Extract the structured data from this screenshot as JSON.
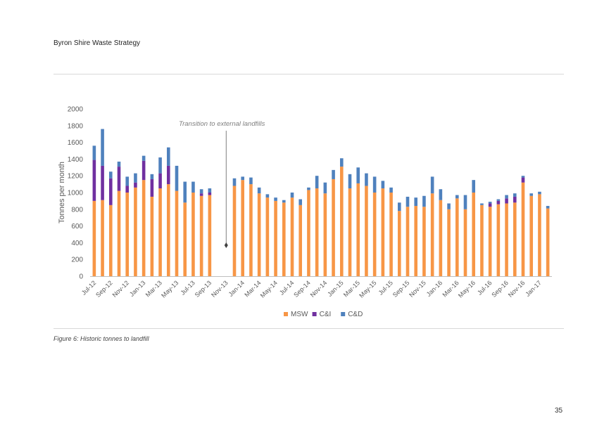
{
  "document": {
    "header": "Byron Shire Waste Strategy",
    "caption": "Figure 6: Historic tonnes to landfill",
    "page_number": "35"
  },
  "chart_data": {
    "type": "bar",
    "stacked": true,
    "title": "",
    "xlabel": "",
    "ylabel": "Tonnes per month",
    "ylim": [
      0,
      2000
    ],
    "yticks": [
      0,
      200,
      400,
      600,
      800,
      1000,
      1200,
      1400,
      1600,
      1800,
      2000
    ],
    "grid": false,
    "legend_position": "bottom",
    "annotation": "Transition to external landfills",
    "annotation_category": "Nov-13",
    "categories": [
      "Jul-12",
      "Aug-12",
      "Sep-12",
      "Oct-12",
      "Nov-12",
      "Dec-12",
      "Jan-13",
      "Feb-13",
      "Mar-13",
      "Apr-13",
      "May-13",
      "Jun-13",
      "Jul-13",
      "Aug-13",
      "Sep-13",
      "Oct-13",
      "Nov-13",
      "Dec-13",
      "Jan-14",
      "Feb-14",
      "Mar-14",
      "Apr-14",
      "May-14",
      "Jun-14",
      "Jul-14",
      "Aug-14",
      "Sep-14",
      "Oct-14",
      "Nov-14",
      "Dec-14",
      "Jan-15",
      "Feb-15",
      "Mar-15",
      "Apr-15",
      "May-15",
      "Jun-15",
      "Jul-15",
      "Aug-15",
      "Sep-15",
      "Oct-15",
      "Nov-15",
      "Dec-15",
      "Jan-16",
      "Feb-16",
      "Mar-16",
      "Apr-16",
      "May-16",
      "Jun-16",
      "Jul-16",
      "Aug-16",
      "Sep-16",
      "Oct-16",
      "Nov-16",
      "Dec-16",
      "Jan-17",
      "Feb-17"
    ],
    "x_tick_labels": [
      "Jul-12",
      "Sep-12",
      "Nov-12",
      "Jan-13",
      "Mar-13",
      "May-13",
      "Jul-13",
      "Sep-13",
      "Nov-13",
      "Jan-14",
      "Mar-14",
      "May-14",
      "Jul-14",
      "Sep-14",
      "Nov-14",
      "Jan-15",
      "Mar-15",
      "May-15",
      "Jul-15",
      "Sep-15",
      "Nov-15",
      "Jan-16",
      "Mar-16",
      "May-16",
      "Jul-16",
      "Sep-16",
      "Nov-16",
      "Jan-17"
    ],
    "series": [
      {
        "name": "MSW",
        "color": "#F79646",
        "values": [
          900,
          910,
          850,
          1020,
          1000,
          1060,
          1150,
          950,
          1050,
          1100,
          1020,
          880,
          1000,
          960,
          970,
          0,
          0,
          1080,
          1150,
          1100,
          990,
          940,
          900,
          880,
          940,
          850,
          1030,
          1050,
          990,
          1160,
          1310,
          1050,
          1110,
          1080,
          1000,
          1050,
          1000,
          780,
          830,
          840,
          830,
          990,
          910,
          800,
          930,
          800,
          1000,
          850,
          830,
          860,
          870,
          880,
          1120,
          960,
          980,
          810
        ]
      },
      {
        "name": "C&I",
        "color": "#7030A0",
        "values": [
          490,
          410,
          320,
          290,
          80,
          60,
          230,
          210,
          180,
          220,
          0,
          0,
          0,
          30,
          30,
          0,
          0,
          0,
          0,
          0,
          0,
          0,
          0,
          0,
          0,
          0,
          0,
          0,
          0,
          0,
          0,
          0,
          0,
          0,
          0,
          0,
          0,
          0,
          0,
          0,
          0,
          0,
          0,
          0,
          0,
          0,
          0,
          0,
          40,
          40,
          60,
          70,
          60,
          0,
          0,
          0
        ]
      },
      {
        "name": "C&D",
        "color": "#4F81BD",
        "values": [
          170,
          440,
          80,
          60,
          110,
          110,
          60,
          60,
          190,
          220,
          300,
          250,
          130,
          50,
          50,
          0,
          0,
          90,
          40,
          80,
          70,
          40,
          40,
          30,
          60,
          70,
          30,
          150,
          130,
          110,
          100,
          170,
          190,
          150,
          190,
          90,
          60,
          100,
          120,
          100,
          130,
          200,
          130,
          70,
          40,
          170,
          150,
          20,
          20,
          20,
          40,
          40,
          20,
          30,
          30,
          30
        ]
      }
    ]
  }
}
